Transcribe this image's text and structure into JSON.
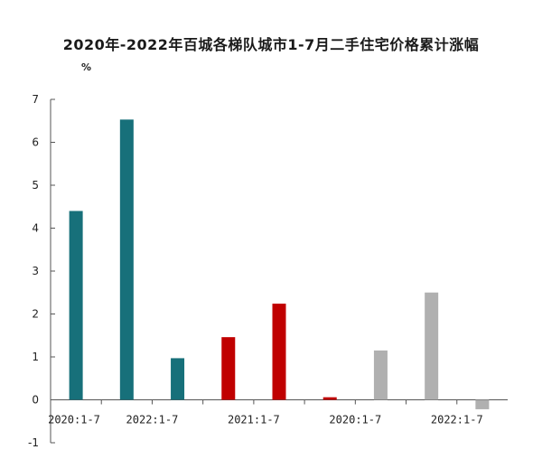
{
  "chart_data": {
    "type": "bar",
    "title": "2020年-2022年百城各梯队城市1-7月二手住宅价格累计涨幅",
    "ylabel": "%",
    "xlabel": "",
    "ylim": [
      -1,
      7
    ],
    "yticks": [
      -1,
      0,
      1,
      2,
      3,
      4,
      5,
      6,
      7
    ],
    "grid": false,
    "categories": [
      "2020:1-7",
      "",
      "2022:1-7",
      "",
      "2021:1-7",
      "",
      "2020:1-7",
      "",
      "2022:1-7"
    ],
    "values": [
      4.4,
      6.53,
      0.97,
      1.46,
      2.24,
      0.06,
      1.15,
      2.5,
      -0.22
    ],
    "colors": [
      "#17707a",
      "#17707a",
      "#17707a",
      "#c00000",
      "#c00000",
      "#c00000",
      "#b0b0b0",
      "#b0b0b0",
      "#b0b0b0"
    ]
  }
}
